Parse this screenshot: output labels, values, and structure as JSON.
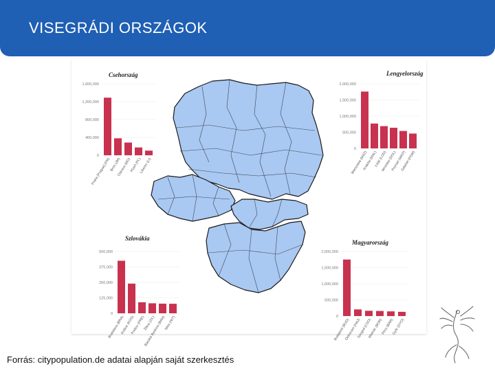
{
  "slide": {
    "title": "VISEGRÁDI ORSZÁGOK",
    "source": "Forrás: citypopulation.de adatai alapján saját szerkesztés"
  },
  "colors": {
    "header": "#1f5fb4",
    "bar": "#c8324f",
    "map_fill": "#a9c8f2",
    "map_border": "#1a1a1a"
  },
  "chart_data": [
    {
      "type": "bar",
      "title": "Csehország",
      "categories": [
        "Praha [Prague] (PR)",
        "Brno (JM)",
        "Ostrava (MO)",
        "Plzeň (PL)",
        "Liberec (LI)"
      ],
      "values": [
        1290000,
        380000,
        285000,
        175000,
        104000
      ],
      "yticks": [
        "0",
        "400,000",
        "800,000",
        "1,200,000",
        "1,600,000"
      ],
      "ylim": [
        0,
        1600000
      ]
    },
    {
      "type": "bar",
      "title": "Lengyelország",
      "categories": [
        "Warszawa (MAZ)",
        "Kraków (MAL)",
        "Łódź (LOD)",
        "Wrocław (DOL)",
        "Poznań (WKP)",
        "Gdańsk (POM)"
      ],
      "values": [
        1760000,
        770000,
        690000,
        640000,
        540000,
        460000
      ],
      "yticks": [
        "0",
        "500,000",
        "1,000,000",
        "1,500,000",
        "2,000,000"
      ],
      "ylim": [
        0,
        2000000
      ]
    },
    {
      "type": "bar",
      "title": "Szlovákia",
      "categories": [
        "Bratislava (BRA)",
        "Košice (KOS)",
        "Prešov (PRE)",
        "Žilina (ZIL)",
        "Banská Bystrica (BAN)",
        "Nitra (NIT)"
      ],
      "values": [
        425000,
        240000,
        89000,
        81000,
        78000,
        77000
      ],
      "yticks": [
        "0",
        "125,000",
        "250,000",
        "375,000",
        "500,000"
      ],
      "ylim": [
        0,
        500000
      ]
    },
    {
      "type": "bar",
      "title": "Magyarország",
      "categories": [
        "Budapest (BUD)",
        "Debrecen (HAJ)",
        "Szeged (CSO)",
        "Miskolc (BOR)",
        "Pécs (BAR)",
        "Győr (GYO)"
      ],
      "values": [
        1750000,
        205000,
        163000,
        157000,
        145000,
        130000
      ],
      "yticks": [
        "0",
        "500,000",
        "1,000,000",
        "1,500,000",
        "2,000,000"
      ],
      "ylim": [
        0,
        2000000
      ]
    }
  ]
}
